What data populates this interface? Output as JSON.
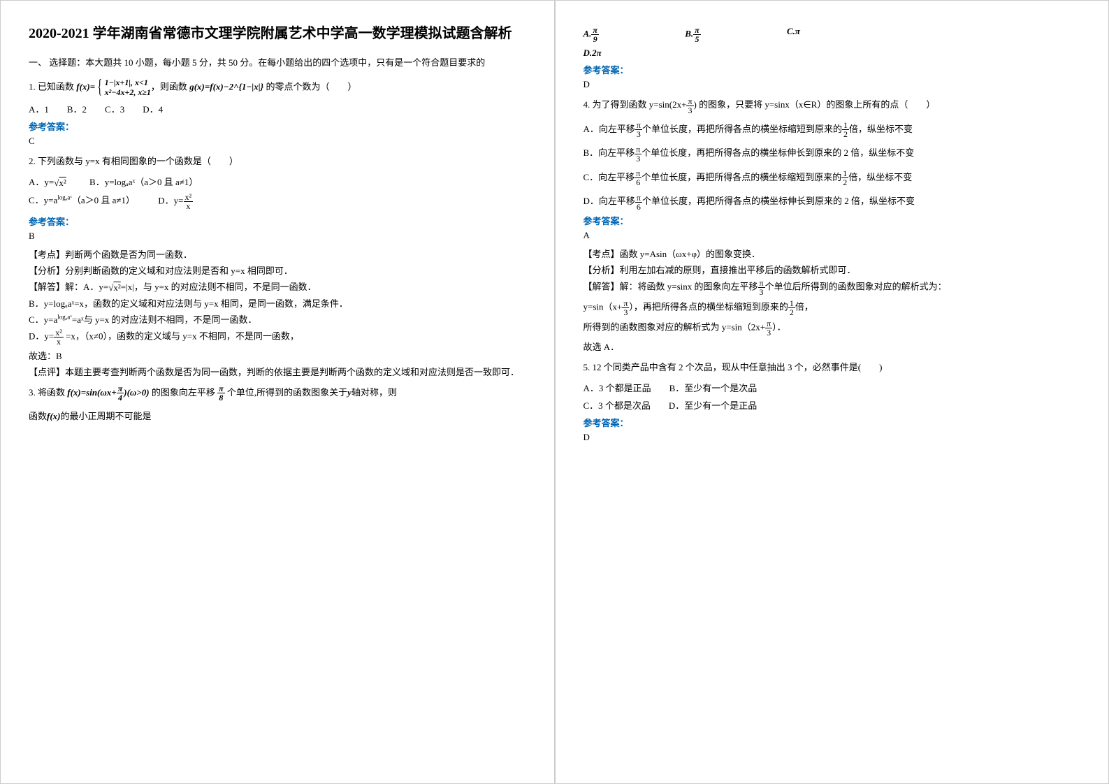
{
  "title": "2020-2021 学年湖南省常德市文理学院附属艺术中学高一数学理模拟试题含解析",
  "section1_head": "一、 选择题：本大题共 10 小题，每小题 5 分，共 50 分。在每小题给出的四个选项中，只有是一个符合题目要求的",
  "q1_prefix": "1. 已知函数",
  "q1_fx_left": "f(x)=",
  "q1_piece1": "1−|x+1|, x<1",
  "q1_piece2": "x²−4x+2, x≥1",
  "q1_mid": "，则函数",
  "q1_gx": "g(x)=f(x)−2^{1−|x|}",
  "q1_tail": "的零点个数为（　　）",
  "q1_options": "A．1　　B．2　　C．3　　D．4",
  "ref_label": "参考答案：",
  "q1_ans": "C",
  "q2_stem": "2. 下列函数与 y=x 有相同图象的一个函数是（　　）",
  "q2_A_prefix": "A．y=",
  "q2_A_radicand": "x²",
  "q2_B": "B．y=logₐaˣ（a＞0 且 a≠1）",
  "q2_C_prefix": "C．y=a",
  "q2_C_sup": "logₐaˣ",
  "q2_C_tail": "（a＞0 且 a≠1）",
  "q2_D_prefix": "D．y=",
  "q2_D_num": "x²",
  "q2_D_den": "x",
  "q2_ans": "B",
  "q2_kd": "【考点】判断两个函数是否为同一函数．",
  "q2_fx": "【分析】分别判断函数的定义域和对应法则是否和 y=x 相同即可．",
  "q2_sol_A_prefix": "【解答】解：A．y=",
  "q2_sol_A_mid_radicand": "x²",
  "q2_sol_A_tail": "=|x|，与 y=x 的对应法则不相同，不是同一函数．",
  "q2_sol_B": "B．y=logₐaˣ=x，函数的定义域和对应法则与 y=x 相同，是同一函数，满足条件．",
  "q2_sol_C_prefix": "C．y=a",
  "q2_sol_C_sup": "logₐaˣ",
  "q2_sol_C_tail": "=aˣ与 y=x 的对应法则不相同，不是同一函数．",
  "q2_sol_D_prefix": "D．y=",
  "q2_sol_D_num": "x²",
  "q2_sol_D_den": "x",
  "q2_sol_D_tail": " =x，（x≠0），函数的定义域与 y=x 不相同，不是同一函数，",
  "q2_pick": "故选：B",
  "q2_dp": "【点评】本题主要考查判断两个函数是否为同一函数，判断的依据主要是判断两个函数的定义域和对应法则是否一致即可．",
  "q3_prefix": "3. 将函数",
  "q3_fx_left": "f(x)=sin(ωx+",
  "q3_fx_num": "π",
  "q3_fx_den": "4",
  "q3_fx_right": ")(ω>0)",
  "q3_mid": "的图象向左平移",
  "q3_shift_num": "π",
  "q3_shift_den": "8",
  "q3_tail_a": "个单位,所得到的函数图象关于",
  "q3_tail_y": "y",
  "q3_tail_b": "轴对称，则",
  "q3_line2_prefix": "函数",
  "q3_line2_fx": "f(x)",
  "q3_line2_tail": "的最小正周期不可能是",
  "q3_A_n": "π",
  "q3_A_d": "9",
  "q3_A_lbl": "A.",
  "q3_B_n": "π",
  "q3_B_d": "5",
  "q3_B_lbl": "B.",
  "q3_C": "C.π",
  "q3_D": "D.2π",
  "q3_ans": "D",
  "q4_prefix": "4. 为了得到函数",
  "q4_yexpr_left": "y=sin(2x+",
  "q4_yexpr_num": "π",
  "q4_yexpr_den": "3",
  "q4_yexpr_right": ")",
  "q4_tail": "的图象，只要将 y=sinx（x∈R）的图象上所有的点（　　）",
  "q4_A_a": "A．向左平移",
  "q4_A_num": "π",
  "q4_A_den": "3",
  "q4_A_b": "个单位长度，再把所得各点的横坐标缩短到原来的",
  "q4_A_num2": "1",
  "q4_A_den2": "2",
  "q4_A_c": "倍，纵坐标不变",
  "q4_B_a": "B．向左平移",
  "q4_B_num": "π",
  "q4_B_den": "3",
  "q4_B_b": "个单位长度，再把所得各点的横坐标伸长到原来的 2 倍，纵坐标不变",
  "q4_C_a": "C．向左平移",
  "q4_C_num": "π",
  "q4_C_den": "6",
  "q4_C_b": "个单位长度，再把所得各点的横坐标缩短到原来的",
  "q4_C_num2": "1",
  "q4_C_den2": "2",
  "q4_C_c": "倍，纵坐标不变",
  "q4_D_a": "D．向左平移",
  "q4_D_num": "π",
  "q4_D_den": "6",
  "q4_D_b": "个单位长度，再把所得各点的横坐标伸长到原来的 2 倍，纵坐标不变",
  "q4_ans": "A",
  "q4_kd": "【考点】函数 y=Asin（ωx+φ）的图象变换．",
  "q4_fx": "【分析】利用左加右减的原则，直接推出平移后的函数解析式即可．",
  "q4_sol_a": "【解答】解：将函数 y=sinx 的图象向左平移",
  "q4_sol_num": "π",
  "q4_sol_den": "3",
  "q4_sol_b": "个单位后所得到的函数图象对应的解析式为：",
  "q4_sol2_a": "y=sin（x+",
  "q4_sol2_num": "π",
  "q4_sol2_den": "3",
  "q4_sol2_b": "），再把所得各点的横坐标缩短到原来的",
  "q4_sol2_num2": "1",
  "q4_sol2_den2": "2",
  "q4_sol2_c": "倍，",
  "q4_sol3_a": "所得到的函数图象对应的解析式为 y=sin（2x+",
  "q4_sol3_num": "π",
  "q4_sol3_den": "3",
  "q4_sol3_b": "）．",
  "q4_pick": "故选 A．",
  "q5_stem": "5. 12 个同类产品中含有 2 个次品，现从中任意抽出 3 个，必然事件是(　　)",
  "q5_opts1": "A．3 个都是正品　　B．至少有一个是次品",
  "q5_opts2": "C．3 个都是次品　　D．至少有一个是正品",
  "q5_ans": "D"
}
